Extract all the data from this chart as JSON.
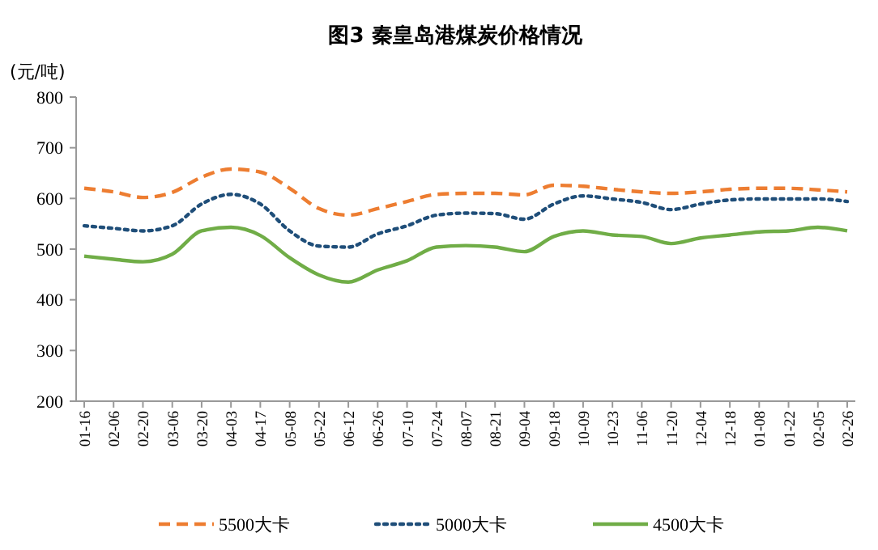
{
  "chart_data": {
    "type": "line",
    "title": "图3 秦皇岛港煤炭价格情况",
    "ylabel": "(元/吨)",
    "categories": [
      "01-16",
      "02-06",
      "02-20",
      "03-06",
      "03-20",
      "04-03",
      "04-17",
      "05-08",
      "05-22",
      "06-12",
      "06-26",
      "07-10",
      "07-24",
      "08-07",
      "08-21",
      "09-04",
      "09-18",
      "10-09",
      "10-23",
      "11-06",
      "11-20",
      "12-04",
      "12-18",
      "01-08",
      "01-22",
      "02-05",
      "02-26"
    ],
    "ylim": [
      200,
      800
    ],
    "yticks": [
      200,
      300,
      400,
      500,
      600,
      700,
      800
    ],
    "grid": false,
    "legend": "bottom",
    "marker": "none",
    "series": [
      {
        "name": "5500大卡",
        "color": "#ed7d31",
        "line_style": "dashed",
        "values": [
          620,
          613,
          602,
          612,
          642,
          658,
          652,
          620,
          580,
          567,
          580,
          594,
          608,
          610,
          610,
          607,
          626,
          624,
          618,
          613,
          610,
          613,
          618,
          620,
          620,
          617,
          613
        ]
      },
      {
        "name": "5000大卡",
        "color": "#1f4e79",
        "line_style": "dotted",
        "values": [
          546,
          541,
          536,
          546,
          589,
          608,
          589,
          536,
          506,
          504,
          530,
          546,
          567,
          571,
          570,
          559,
          589,
          605,
          599,
          592,
          578,
          589,
          597,
          599,
          599,
          599,
          594
        ]
      },
      {
        "name": "4500大卡",
        "color": "#70ad47",
        "line_style": "solid",
        "values": [
          486,
          480,
          475,
          490,
          536,
          543,
          527,
          483,
          449,
          435,
          459,
          477,
          504,
          507,
          504,
          495,
          525,
          536,
          528,
          525,
          511,
          522,
          528,
          534,
          536,
          543,
          536
        ]
      }
    ]
  }
}
